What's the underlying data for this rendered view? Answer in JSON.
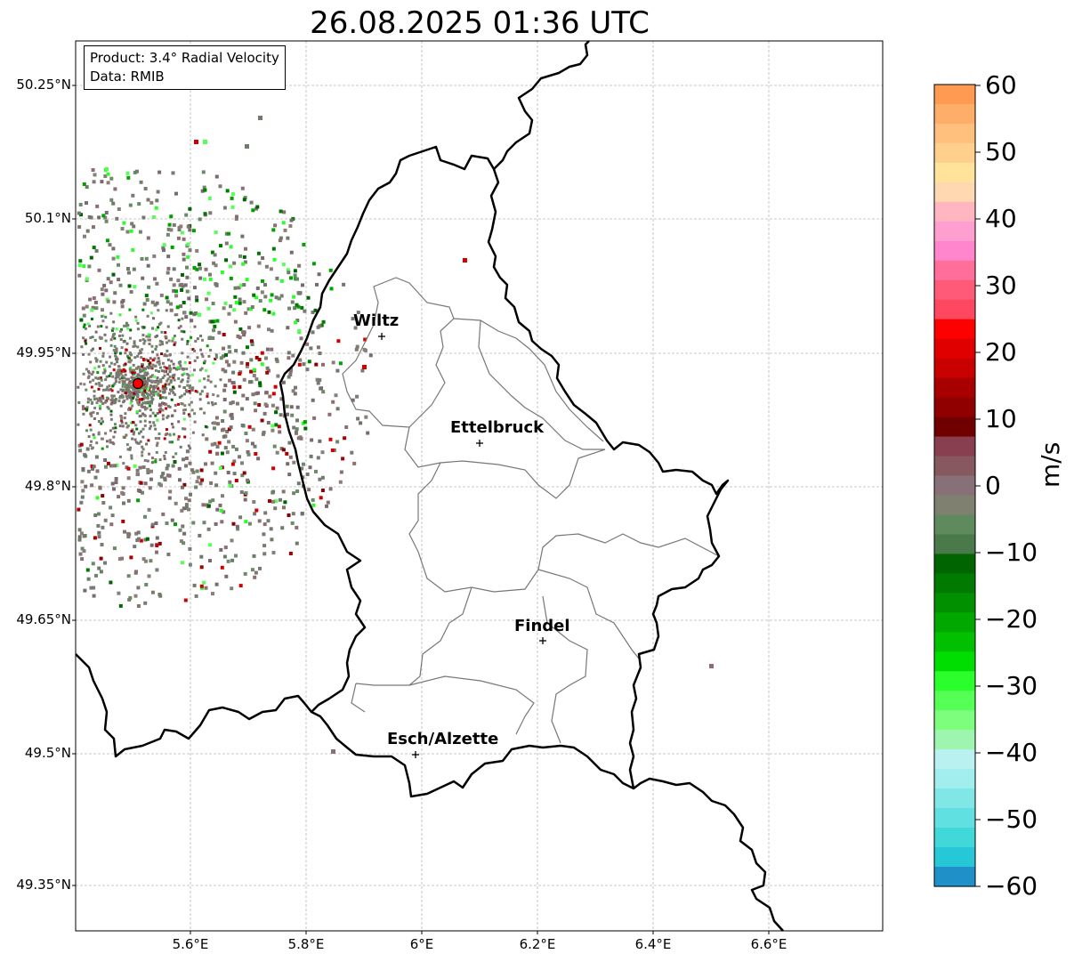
{
  "title": "26.08.2025 01:36 UTC",
  "info_box": {
    "product_line": "Product: 3.4° Radial Velocity",
    "data_line": "Data: RMIB"
  },
  "latitude_labels": [
    "50.25°N",
    "50.1°N",
    "49.95°N",
    "49.8°N",
    "49.65°N",
    "49.5°N",
    "49.35°N"
  ],
  "longitude_labels": [
    "5.6°E",
    "5.8°E",
    "6°E",
    "6.2°E",
    "6.4°E",
    "6.6°E"
  ],
  "cities": [
    {
      "name": "Wiltz"
    },
    {
      "name": "Ettelbruck"
    },
    {
      "name": "Findel"
    },
    {
      "name": "Esch/Alzette"
    }
  ],
  "colorbar": {
    "unit": "m/s",
    "tick_labels": [
      "60",
      "50",
      "40",
      "30",
      "20",
      "10",
      "0",
      "−10",
      "−20",
      "−30",
      "−40",
      "−50",
      "−60"
    ],
    "range": [
      -60,
      60
    ],
    "colors_top_to_bottom": [
      "#ff9a52",
      "#ffae69",
      "#ffbf7d",
      "#ffcf8c",
      "#ffe39b",
      "#ffd7b0",
      "#ffb6c1",
      "#ff9fd0",
      "#ff86cc",
      "#ff6f9a",
      "#ff5a78",
      "#ff4760",
      "#ff0000",
      "#e00000",
      "#c80000",
      "#a80000",
      "#900000",
      "#700000",
      "#884050",
      "#885860",
      "#887078",
      "#808070",
      "#5e8a5e",
      "#4a7a4a",
      "#006400",
      "#007a00",
      "#009000",
      "#00a800",
      "#00c000",
      "#00dd00",
      "#2bff2b",
      "#55ff55",
      "#7dff7d",
      "#9df5b0",
      "#b9f0f0",
      "#a0eeee",
      "#80e6e6",
      "#60e0e0",
      "#40d8d8",
      "#26c8d8",
      "#2090c8"
    ]
  },
  "radar_site_color": "#ff0000"
}
